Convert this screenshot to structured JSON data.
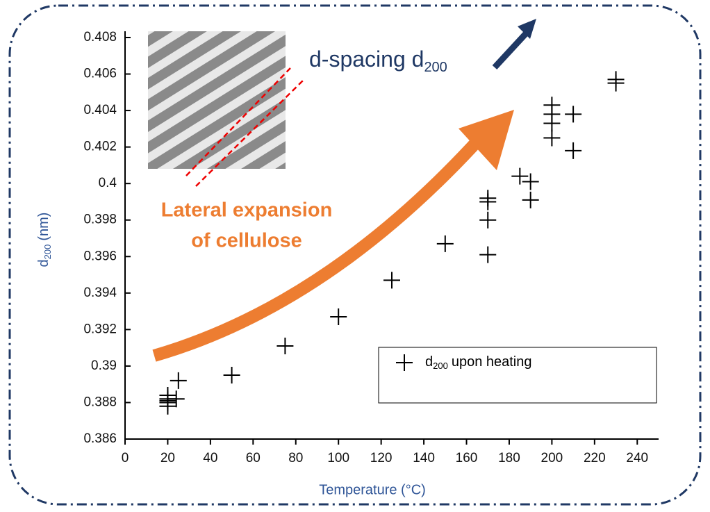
{
  "chart_data": {
    "type": "scatter",
    "x_label": "Temperature (°C)",
    "y_label": {
      "main": "d",
      "sub": "200",
      "rest": "(nm)"
    },
    "legend": {
      "main": "d",
      "sub": "200",
      "rest": "upon heating"
    },
    "annotations": {
      "spacing": {
        "main": "d-spacing d",
        "sub": "200"
      },
      "expansion": [
        "Lateral expansion",
        "of cellulose"
      ]
    },
    "series": [
      {
        "color": "#000000",
        "x": [
          20,
          20,
          20,
          20,
          20,
          24,
          25,
          50,
          75,
          100,
          125,
          150,
          170,
          170,
          170,
          170,
          185,
          190,
          190,
          200,
          200,
          200,
          200,
          210,
          210,
          230,
          230
        ],
        "values": [
          0.388,
          0.3881,
          0.3882,
          0.3884,
          0.3878,
          0.3882,
          0.3892,
          0.3895,
          0.3911,
          0.3927,
          0.3947,
          0.3967,
          0.3961,
          0.398,
          0.399,
          0.3992,
          0.4004,
          0.4001,
          0.3991,
          0.4025,
          0.4033,
          0.4038,
          0.4043,
          0.4038,
          0.4018,
          0.4057,
          0.4055
        ]
      }
    ],
    "xlim": [
      0,
      250
    ],
    "ylim": [
      0.386,
      0.408
    ],
    "xticks": [
      0,
      20,
      40,
      60,
      80,
      100,
      120,
      140,
      160,
      180,
      200,
      220,
      240
    ],
    "yticks": [
      0.386,
      0.388,
      0.39,
      0.392,
      0.394,
      0.396,
      0.398,
      0.4,
      0.402,
      0.404,
      0.406,
      0.408
    ]
  }
}
